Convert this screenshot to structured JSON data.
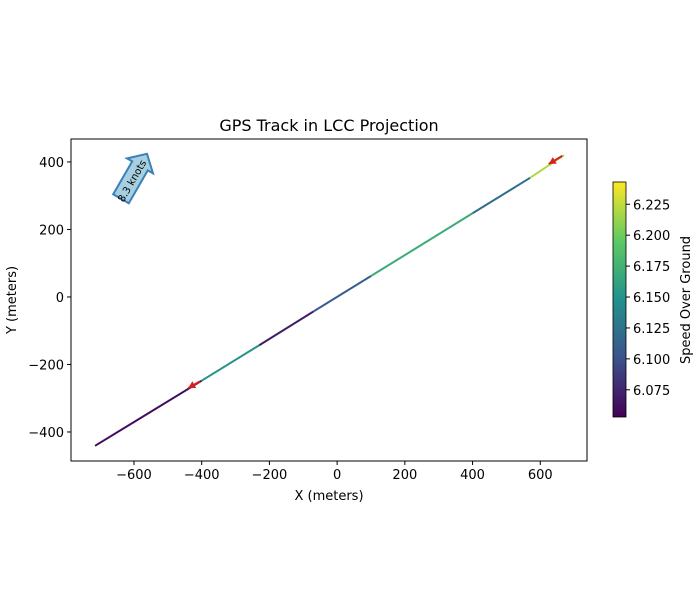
{
  "chart_data": {
    "type": "line",
    "title": "GPS Track in LCC Projection",
    "xlabel": "X (meters)",
    "ylabel": "Y (meters)",
    "xlim": [
      -786,
      738
    ],
    "ylim": [
      -486,
      468
    ],
    "xticks": [
      -600,
      -400,
      -200,
      0,
      200,
      400,
      600
    ],
    "yticks": [
      -400,
      -200,
      0,
      200,
      400
    ],
    "grid": false,
    "track": {
      "x": [
        -715,
        -400,
        -230,
        -70,
        100,
        400,
        570,
        670
      ],
      "y": [
        -441,
        -248,
        -143,
        -43,
        62,
        248,
        353,
        420
      ],
      "speed": [
        6.06,
        6.15,
        6.07,
        6.11,
        6.17,
        6.12,
        6.22
      ]
    },
    "direction_arrows": [
      {
        "x": -405,
        "y": -250,
        "dx": -35,
        "dy": -20
      },
      {
        "x": 665,
        "y": 418,
        "dx": -40,
        "dy": -24
      }
    ],
    "annotation": {
      "text": "8.3 knots",
      "x": -600,
      "y": 340
    },
    "colorbar": {
      "label": "Speed Over Ground",
      "range": [
        6.053,
        6.243
      ],
      "ticks": [
        "6.075",
        "6.100",
        "6.125",
        "6.150",
        "6.175",
        "6.200",
        "6.225"
      ],
      "colormap": "viridis"
    }
  }
}
